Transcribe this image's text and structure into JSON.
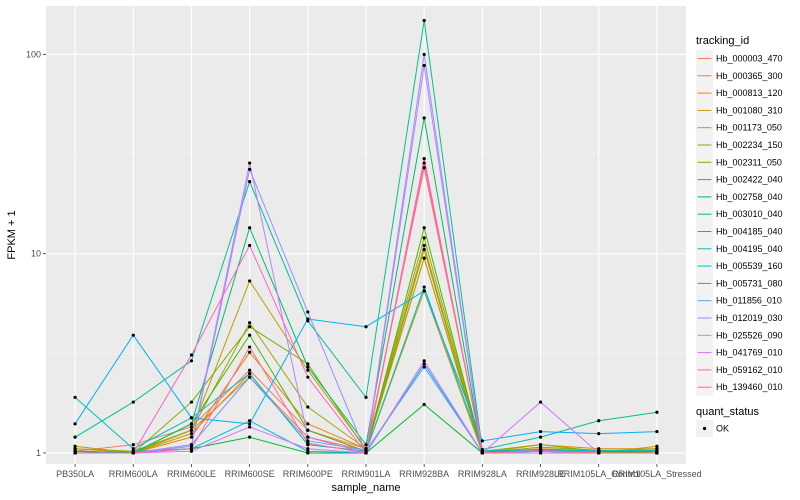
{
  "chart_data": {
    "type": "line",
    "xlabel": "sample_name",
    "ylabel": "FPKM + 1",
    "y_scale": "log10",
    "ylim": [
      0.88,
      175
    ],
    "y_ticks": [
      1,
      10,
      100
    ],
    "y_tick_labels": [
      "1",
      "10",
      "100"
    ],
    "categories": [
      "PB350LA",
      "RRIM600LA",
      "RRIM600LE",
      "RRIM600SE",
      "RRIM600PE",
      "RRIM901LA",
      "RRIM928BA",
      "RRIM928LA",
      "RRIM928LE",
      "RRIM105LA_Control",
      "RRIM105LA_Stressed"
    ],
    "grid": true,
    "legend_title": "tracking_id",
    "legend_position": "right",
    "shape_legend_title": "quant_status",
    "shape_legend_entries": [
      "OK"
    ],
    "series": [
      {
        "name": "Hb_000003_470",
        "color": "#F8766D",
        "values": [
          1.02,
          1.1,
          1.35,
          2.6,
          1.3,
          1.05,
          27.0,
          1.02,
          1.02,
          1.02,
          1.02
        ]
      },
      {
        "name": "Hb_000365_300",
        "color": "#F07F34",
        "values": [
          1.02,
          1.0,
          1.3,
          2.4,
          1.2,
          1.03,
          9.5,
          1.0,
          1.02,
          1.02,
          1.0
        ]
      },
      {
        "name": "Hb_000813_120",
        "color": "#DE8C00",
        "values": [
          1.05,
          1.0,
          1.2,
          3.2,
          1.4,
          1.05,
          11.0,
          1.0,
          1.1,
          1.05,
          1.05
        ]
      },
      {
        "name": "Hb_001080_310",
        "color": "#C99800",
        "values": [
          1.0,
          1.0,
          1.25,
          2.5,
          1.1,
          1.02,
          6.5,
          1.0,
          1.03,
          1.0,
          1.08
        ]
      },
      {
        "name": "Hb_001173_050",
        "color": "#B79F00",
        "values": [
          1.08,
          1.0,
          1.3,
          7.3,
          2.6,
          1.05,
          9.5,
          1.0,
          1.05,
          1.02,
          1.0
        ]
      },
      {
        "name": "Hb_002234_150",
        "color": "#9DA700",
        "values": [
          1.05,
          1.02,
          1.3,
          4.5,
          1.7,
          1.05,
          12.0,
          1.02,
          1.1,
          1.02,
          1.05
        ]
      },
      {
        "name": "Hb_002311_050",
        "color": "#7CAE00",
        "values": [
          1.02,
          1.0,
          1.8,
          4.3,
          2.8,
          1.03,
          10.5,
          1.0,
          1.07,
          1.03,
          1.0
        ]
      },
      {
        "name": "Hb_002422_040",
        "color": "#49B500",
        "values": [
          1.02,
          1.0,
          1.4,
          3.9,
          1.3,
          1.02,
          13.5,
          1.02,
          1.02,
          1.0,
          1.02
        ]
      },
      {
        "name": "Hb_002758_040",
        "color": "#00BA38",
        "values": [
          1.0,
          1.0,
          1.05,
          1.2,
          1.0,
          1.0,
          1.75,
          1.0,
          1.0,
          1.0,
          1.0
        ]
      },
      {
        "name": "Hb_003010_040",
        "color": "#00BE67",
        "values": [
          1.02,
          1.0,
          1.4,
          13.5,
          2.7,
          1.1,
          48.0,
          1.0,
          1.04,
          1.02,
          1.02
        ]
      },
      {
        "name": "Hb_004185_040",
        "color": "#00C094",
        "values": [
          1.2,
          1.8,
          2.9,
          23.0,
          4.6,
          1.9,
          148.0,
          1.04,
          1.2,
          1.45,
          1.6
        ]
      },
      {
        "name": "Hb_004195_040",
        "color": "#00C0B8",
        "values": [
          1.9,
          1.05,
          1.5,
          2.5,
          1.1,
          1.02,
          6.8,
          1.03,
          1.03,
          1.03,
          1.03
        ]
      },
      {
        "name": "Hb_005539_160",
        "color": "#00BCD8",
        "values": [
          1.0,
          1.02,
          1.05,
          1.45,
          1.02,
          1.0,
          2.8,
          1.0,
          1.02,
          1.0,
          1.0
        ]
      },
      {
        "name": "Hb_005731_080",
        "color": "#00B0F6",
        "values": [
          1.4,
          3.9,
          1.5,
          1.4,
          4.7,
          4.3,
          6.5,
          1.15,
          1.28,
          1.25,
          1.28
        ]
      },
      {
        "name": "Hb_011856_010",
        "color": "#619CFF",
        "values": [
          1.0,
          1.0,
          1.1,
          2.4,
          1.15,
          1.03,
          2.7,
          1.0,
          1.02,
          1.0,
          1.0
        ]
      },
      {
        "name": "Hb_012019_030",
        "color": "#9590FF",
        "values": [
          1.0,
          1.0,
          1.08,
          26.5,
          5.1,
          1.0,
          100.0,
          1.0,
          1.02,
          1.0,
          1.0
        ]
      },
      {
        "name": "Hb_025526_090",
        "color": "#B983FF",
        "values": [
          1.0,
          1.0,
          1.1,
          28.5,
          1.2,
          1.0,
          88.0,
          1.0,
          1.0,
          1.0,
          1.0
        ]
      },
      {
        "name": "Hb_041769_010",
        "color": "#D774FD",
        "values": [
          1.0,
          1.0,
          1.02,
          1.35,
          1.05,
          1.0,
          2.9,
          1.0,
          1.8,
          1.0,
          1.0
        ]
      },
      {
        "name": "Hb_059162_010",
        "color": "#FF61C3",
        "values": [
          1.0,
          1.0,
          3.1,
          11.0,
          2.4,
          1.0,
          30.0,
          1.0,
          1.03,
          1.0,
          1.0
        ]
      },
      {
        "name": "Hb_139460_010",
        "color": "#FF6C91",
        "values": [
          1.0,
          1.0,
          1.05,
          3.4,
          1.12,
          1.0,
          28.5,
          1.0,
          1.02,
          1.0,
          1.0
        ]
      }
    ]
  }
}
